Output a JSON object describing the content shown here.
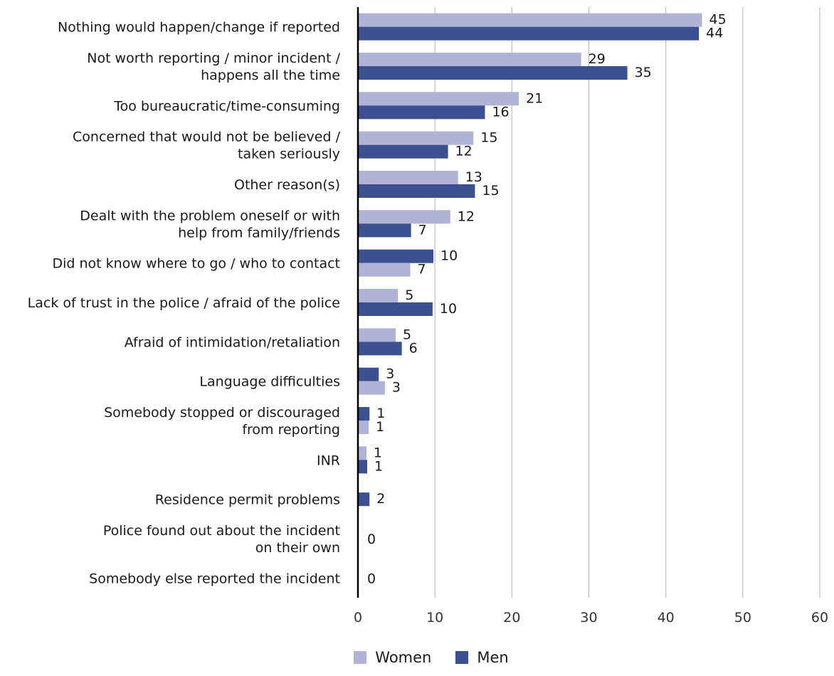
{
  "chart_data": {
    "type": "bar",
    "orientation": "horizontal",
    "categories": [
      [
        "Nothing would happen/change if reported"
      ],
      [
        "Not worth reporting / minor incident /",
        "happens all the time"
      ],
      [
        "Too bureaucratic/time-consuming"
      ],
      [
        "Concerned that would not be believed /",
        "taken seriously"
      ],
      [
        "Other reason(s)"
      ],
      [
        "Dealt with the problem oneself or with",
        "help from family/friends"
      ],
      [
        "Did not know where to go / who to contact"
      ],
      [
        "Lack of trust in the police / afraid of the police"
      ],
      [
        "Afraid of intimidation/retaliation"
      ],
      [
        "Language difficulties"
      ],
      [
        "Somebody stopped or discouraged",
        "from reporting"
      ],
      [
        "INR"
      ],
      [
        "Residence permit problems"
      ],
      [
        "Police found out about the incident",
        "on their own"
      ],
      [
        "Somebody else reported the incident"
      ]
    ],
    "series": [
      {
        "name": "Women",
        "color": "#b1b3d6",
        "values": [
          44.7,
          29.0,
          20.9,
          15.0,
          13.0,
          12.0,
          6.8,
          5.2,
          4.9,
          3.5,
          1.4,
          1.1,
          null,
          null,
          null
        ],
        "labels": [
          "45",
          "29",
          "21",
          "15",
          "13",
          "12",
          "7",
          "5",
          "5",
          "3",
          "1",
          "1",
          "",
          "",
          ""
        ]
      },
      {
        "name": "Men",
        "color": "#3c4f8f",
        "values": [
          44.3,
          35.0,
          16.5,
          11.7,
          15.2,
          6.9,
          9.8,
          9.7,
          5.7,
          2.7,
          1.5,
          1.2,
          1.5,
          0,
          0
        ],
        "labels": [
          "44",
          "35",
          "16",
          "12",
          "15",
          "7",
          "10",
          "10",
          "6",
          "3",
          "1",
          "1",
          "2",
          "0",
          "0"
        ]
      }
    ],
    "order": [
      "WM",
      "WM",
      "WM",
      "WM",
      "WM",
      "WM",
      "MW",
      "WM",
      "WM",
      "MW",
      "MW",
      "WM",
      "M",
      "0",
      "0"
    ],
    "xlim": [
      0,
      60
    ],
    "xticks": [
      0,
      10,
      20,
      30,
      40,
      50,
      60
    ],
    "grid": true,
    "legend_position": "bottom-center",
    "title": "",
    "xlabel": "",
    "ylabel": ""
  },
  "legend": {
    "women_label": "Women",
    "men_label": "Men",
    "women_color": "#b1b3d6",
    "men_color": "#3c4f8f"
  }
}
